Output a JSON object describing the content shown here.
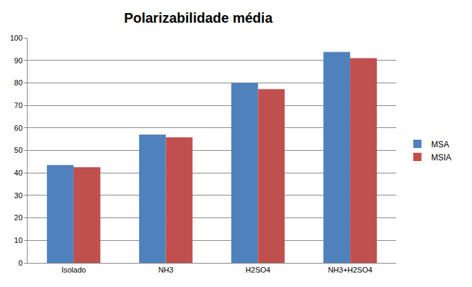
{
  "chart_data": {
    "type": "bar",
    "title": "Polarizabilidade média",
    "categories": [
      "Isolado",
      "NH3",
      "H2SO4",
      "NH3+H2SO4"
    ],
    "series": [
      {
        "name": "MSA",
        "color": "#4f81bd",
        "values": [
          43.5,
          57,
          80,
          93.7
        ]
      },
      {
        "name": "MSIA",
        "color": "#c0504d",
        "values": [
          42.5,
          55.8,
          77.2,
          91
        ]
      }
    ],
    "ylim": [
      0,
      100
    ],
    "yticks": [
      0,
      10,
      20,
      30,
      40,
      50,
      60,
      70,
      80,
      90,
      100
    ],
    "grid": true,
    "legend": "right"
  }
}
